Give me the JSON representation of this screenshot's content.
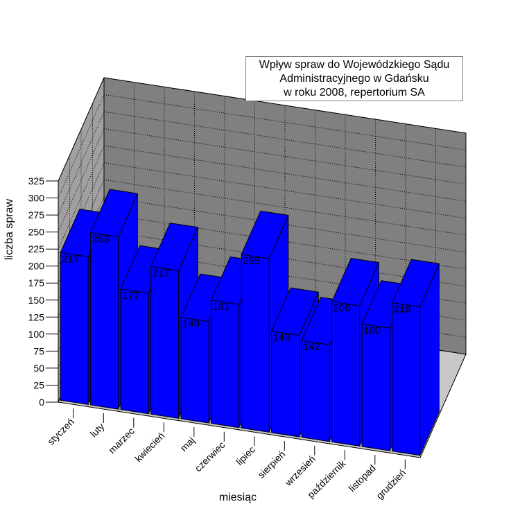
{
  "chart_data": {
    "type": "bar",
    "title_lines": [
      "Wpływ spraw do Wojewódzkiego Sądu",
      "Administracyjnego w Gdańsku",
      "w roku 2008, repertorium SA"
    ],
    "xlabel": "miesiąc",
    "ylabel": "liczba spraw",
    "categories": [
      "styczeń",
      "luty",
      "marzec",
      "kwiecień",
      "maj",
      "czerwiec",
      "lipiec",
      "sierpień",
      "wrzesień",
      "październik",
      "listopad",
      "grudzień"
    ],
    "values": [
      217,
      253,
      177,
      217,
      149,
      181,
      255,
      149,
      142,
      206,
      180,
      218
    ],
    "ylim": [
      0,
      325
    ],
    "yticks": [
      0,
      25,
      50,
      75,
      100,
      125,
      150,
      175,
      200,
      225,
      250,
      275,
      300,
      325
    ],
    "grid": true,
    "legend": false,
    "colors": {
      "bar_front": "#0000ff",
      "bar_top": "#0000ff",
      "bar_side": "#0000ff",
      "back_wall": "#808080",
      "side_wall": "#a0a0a0",
      "floor": "#c8c8c8"
    }
  }
}
